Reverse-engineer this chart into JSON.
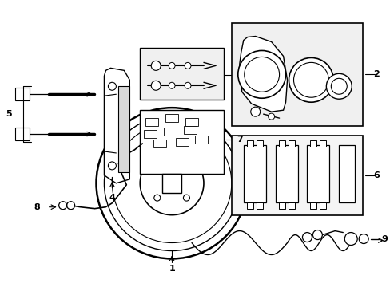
{
  "background_color": "#ffffff",
  "fig_width": 4.89,
  "fig_height": 3.6,
  "dpi": 100,
  "line_color": "#000000",
  "gray_fill": "#e8e8e8",
  "light_gray": "#f0f0f0"
}
